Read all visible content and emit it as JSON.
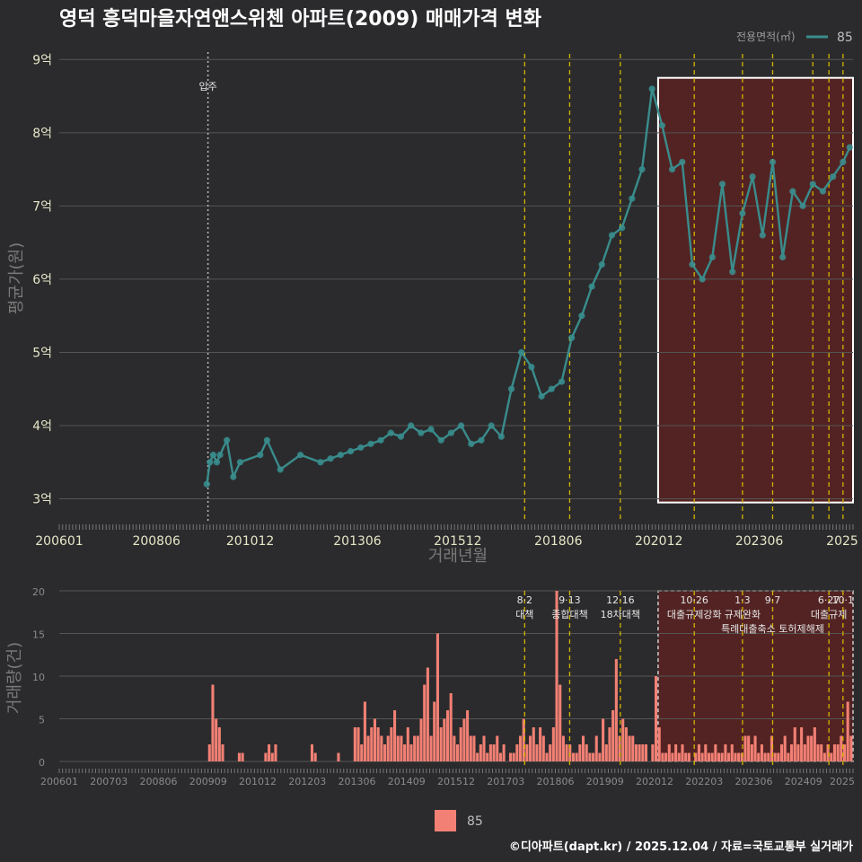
{
  "title": "영덕 흥덕마을자연앤스위첸 아파트(2009) 매매가격 변화",
  "footer": "©디아파트(dapt.kr) / 2025.12.04 / 자료=국토교통부 실거래가",
  "colors": {
    "background": "#2b2b2d",
    "line": "#3a8c8c",
    "point": "#3aa0a0",
    "bar": "#f28074",
    "highlight": "#5a2222",
    "policy": "#d4b400",
    "grid": "#555555"
  },
  "chart_data": [
    {
      "type": "line",
      "name": "price",
      "ylabel": "평균가(원)",
      "xlabel": "거래년월",
      "ylim": [
        2.7,
        9.2
      ],
      "yticks": [
        3,
        4,
        5,
        6,
        7,
        8,
        9
      ],
      "ytick_labels": [
        "3억",
        "4억",
        "5억",
        "6억",
        "7억",
        "8억",
        "9억"
      ],
      "xlim": [
        2006.0,
        2025.75
      ],
      "xticks": [
        2006.0,
        2008.417,
        2010.75,
        2013.417,
        2015.917,
        2018.417,
        2020.917,
        2023.417,
        2025.917
      ],
      "xtick_labels": [
        "200601",
        "200806",
        "201012",
        "201306",
        "201512",
        "201806",
        "202012",
        "202306",
        "2025"
      ],
      "legend": {
        "title": "전용면적(㎡)",
        "label": "85"
      },
      "annotation": {
        "label": "입주",
        "x": 2009.7
      },
      "series": [
        {
          "name": "85",
          "x": [
            2009.67,
            2009.75,
            2009.83,
            2009.92,
            2010.0,
            2010.17,
            2010.33,
            2010.5,
            2011.0,
            2011.17,
            2011.5,
            2012.0,
            2012.5,
            2012.75,
            2013.0,
            2013.25,
            2013.5,
            2013.75,
            2014.0,
            2014.25,
            2014.5,
            2014.75,
            2015.0,
            2015.25,
            2015.5,
            2015.75,
            2016.0,
            2016.25,
            2016.5,
            2016.75,
            2017.0,
            2017.25,
            2017.5,
            2017.75,
            2018.0,
            2018.25,
            2018.5,
            2018.75,
            2019.0,
            2019.25,
            2019.5,
            2019.75,
            2020.0,
            2020.25,
            2020.5,
            2020.75,
            2021.0,
            2021.25,
            2021.5,
            2021.75,
            2022.0,
            2022.25,
            2022.5,
            2022.75,
            2023.0,
            2023.25,
            2023.5,
            2023.75,
            2024.0,
            2024.25,
            2024.5,
            2024.75,
            2025.0,
            2025.25,
            2025.5,
            2025.67
          ],
          "y": [
            3.2,
            3.5,
            3.6,
            3.5,
            3.6,
            3.8,
            3.3,
            3.5,
            3.6,
            3.8,
            3.4,
            3.6,
            3.5,
            3.55,
            3.6,
            3.65,
            3.7,
            3.75,
            3.8,
            3.9,
            3.85,
            4.0,
            3.9,
            3.95,
            3.8,
            3.9,
            4.0,
            3.75,
            3.8,
            4.0,
            3.85,
            4.5,
            5.0,
            4.8,
            4.4,
            4.5,
            4.6,
            5.2,
            5.5,
            5.9,
            6.2,
            6.6,
            6.7,
            7.1,
            7.5,
            8.6,
            8.1,
            7.5,
            7.6,
            6.2,
            6.0,
            6.3,
            7.3,
            6.1,
            6.9,
            7.4,
            6.6,
            7.6,
            6.3,
            7.2,
            7.0,
            7.3,
            7.2,
            7.4,
            7.6,
            7.8
          ]
        }
      ],
      "highlight": {
        "x0": 2020.9,
        "x1": 2025.75,
        "y0": 2.95,
        "y1": 8.75
      },
      "policy_lines": [
        2017.58,
        2018.7,
        2019.96,
        2021.8,
        2023.0,
        2023.75,
        2024.75,
        2025.15,
        2025.5
      ]
    },
    {
      "type": "bar",
      "name": "volume",
      "ylabel": "거래량(건)",
      "ylim": [
        0,
        20
      ],
      "yticks": [
        0,
        5,
        10,
        15,
        20
      ],
      "ytick_labels": [
        "0",
        "5",
        "10",
        "15",
        "20"
      ],
      "xtick_labels": [
        "200601",
        "200703",
        "200806",
        "200909",
        "201012",
        "201203",
        "201306",
        "201409",
        "201512",
        "201703",
        "201806",
        "201909",
        "202012",
        "202203",
        "202306",
        "202409",
        "2025"
      ],
      "legend_label": "85",
      "values": [
        0,
        0,
        0,
        0,
        0,
        0,
        0,
        0,
        0,
        0,
        0,
        0,
        0,
        0,
        0,
        0,
        0,
        0,
        0,
        0,
        0,
        0,
        0,
        0,
        0,
        0,
        0,
        0,
        0,
        0,
        0,
        0,
        0,
        0,
        0,
        0,
        0,
        0,
        0,
        0,
        0,
        0,
        0,
        0,
        0,
        2,
        9,
        5,
        4,
        2,
        0,
        0,
        0,
        0,
        1,
        1,
        0,
        0,
        0,
        0,
        0,
        0,
        1,
        2,
        1,
        2,
        0,
        0,
        0,
        0,
        0,
        0,
        0,
        0,
        0,
        0,
        2,
        1,
        0,
        0,
        0,
        0,
        0,
        0,
        1,
        0,
        0,
        0,
        0,
        4,
        4,
        2,
        7,
        3,
        4,
        5,
        4,
        3,
        2,
        3,
        4,
        6,
        3,
        3,
        2,
        4,
        2,
        3,
        3,
        5,
        9,
        11,
        3,
        7,
        15,
        4,
        5,
        6,
        8,
        3,
        2,
        4,
        5,
        6,
        3,
        3,
        1,
        2,
        3,
        1,
        2,
        2,
        3,
        1,
        2,
        0,
        1,
        1,
        2,
        3,
        5,
        2,
        3,
        4,
        2,
        4,
        3,
        1,
        2,
        4,
        20,
        9,
        3,
        2,
        2,
        1,
        1,
        2,
        3,
        2,
        1,
        1,
        3,
        1,
        5,
        2,
        4,
        6,
        12,
        3,
        5,
        4,
        3,
        3,
        2,
        2,
        2,
        2,
        0,
        2,
        10,
        4,
        1,
        1,
        2,
        1,
        2,
        1,
        2,
        1,
        1,
        0,
        1,
        2,
        1,
        2,
        1,
        1,
        2,
        1,
        1,
        2,
        1,
        2,
        1,
        1,
        1,
        3,
        3,
        2,
        3,
        1,
        2,
        1,
        1,
        3,
        1,
        1,
        2,
        3,
        1,
        2,
        4,
        2,
        4,
        2,
        3,
        3,
        4,
        2,
        2,
        1,
        2,
        1,
        2,
        2,
        3,
        2,
        7,
        3
      ],
      "events": [
        {
          "date": "8·2",
          "label": "대책",
          "x": 2017.58
        },
        {
          "date": "9·13",
          "label": "종합대책",
          "x": 2018.7
        },
        {
          "date": "12·16",
          "label": "18차대책",
          "x": 2019.96
        },
        {
          "date": "10·26",
          "label": "대출규제강화",
          "x": 2021.8
        },
        {
          "date": "1·3",
          "label": "규제완화",
          "x": 2023.0
        },
        {
          "date": "9·7",
          "label": "특례대출축소 토허제해제",
          "x": 2023.75
        },
        {
          "date": "6·27",
          "label": "대출규제",
          "x": 2025.15
        },
        {
          "date": "10·1",
          "label": "",
          "x": 2025.5
        }
      ]
    }
  ]
}
